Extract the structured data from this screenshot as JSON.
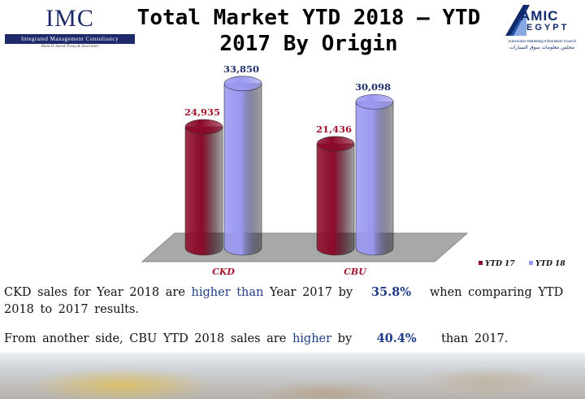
{
  "header": {
    "title_line1": "Total Market YTD 2018 – YTD",
    "title_line2": "2017 By Origin"
  },
  "logos": {
    "imc": {
      "name": "IMC",
      "full_name": "Integrated Management Consultancy",
      "tagline": "Rami El Saeed Tiwaq & Associates"
    },
    "amic": {
      "line1": "AMIC",
      "line2": "EGYPT",
      "subtitle": "Automotive Marketing Information Council",
      "arabic": "مجلس معلومات سوق السيارات"
    }
  },
  "chart_data": {
    "type": "bar",
    "categories": [
      "CKD",
      "CBU"
    ],
    "series": [
      {
        "name": "YTD 17",
        "values": [
          24935,
          21436
        ],
        "color": "#8b0a2a",
        "label_color": "#a0152b"
      },
      {
        "name": "YTD 18",
        "values": [
          33850,
          30098
        ],
        "color": "#9a98f0",
        "label_color": "#1f2f6e"
      }
    ],
    "value_labels": [
      [
        "24,935",
        "21,436"
      ],
      [
        "33,850",
        "30,098"
      ]
    ],
    "category_label_color": "#a0152b",
    "floor_color": "#a8a8a8",
    "ylim": [
      0,
      36000
    ],
    "legend_position": "right",
    "grid": false,
    "style": "3d-cylinder"
  },
  "text": {
    "p1": {
      "part1": "CKD sales for Year 2018 are",
      "highlight": "higher than",
      "part2": "Year 2017 by",
      "percent": "35.8%",
      "part3": "when comparing YTD 2018 to 2017 results."
    },
    "p2": {
      "part1": "From another side, CBU YTD 2018 sales are",
      "highlight": "higher",
      "part2": "by",
      "percent": "40.4%",
      "part3": "than 2017."
    }
  }
}
